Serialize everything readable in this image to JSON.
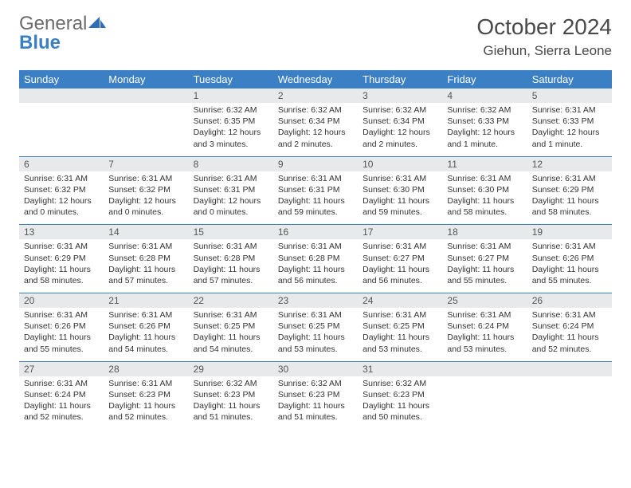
{
  "logo": {
    "general": "General",
    "blue": "Blue"
  },
  "title": "October 2024",
  "location": "Giehun, Sierra Leone",
  "colors": {
    "header_bg": "#3b7fc4",
    "header_text": "#ffffff",
    "daynum_bg": "#e8e9ea",
    "text": "#333333",
    "logo_gray": "#6b6b6b",
    "logo_blue": "#3b7fc4"
  },
  "dow": [
    "Sunday",
    "Monday",
    "Tuesday",
    "Wednesday",
    "Thursday",
    "Friday",
    "Saturday"
  ],
  "weeks": [
    [
      null,
      null,
      {
        "n": "1",
        "sr": "Sunrise: 6:32 AM",
        "ss": "Sunset: 6:35 PM",
        "dl": "Daylight: 12 hours and 3 minutes."
      },
      {
        "n": "2",
        "sr": "Sunrise: 6:32 AM",
        "ss": "Sunset: 6:34 PM",
        "dl": "Daylight: 12 hours and 2 minutes."
      },
      {
        "n": "3",
        "sr": "Sunrise: 6:32 AM",
        "ss": "Sunset: 6:34 PM",
        "dl": "Daylight: 12 hours and 2 minutes."
      },
      {
        "n": "4",
        "sr": "Sunrise: 6:32 AM",
        "ss": "Sunset: 6:33 PM",
        "dl": "Daylight: 12 hours and 1 minute."
      },
      {
        "n": "5",
        "sr": "Sunrise: 6:31 AM",
        "ss": "Sunset: 6:33 PM",
        "dl": "Daylight: 12 hours and 1 minute."
      }
    ],
    [
      {
        "n": "6",
        "sr": "Sunrise: 6:31 AM",
        "ss": "Sunset: 6:32 PM",
        "dl": "Daylight: 12 hours and 0 minutes."
      },
      {
        "n": "7",
        "sr": "Sunrise: 6:31 AM",
        "ss": "Sunset: 6:32 PM",
        "dl": "Daylight: 12 hours and 0 minutes."
      },
      {
        "n": "8",
        "sr": "Sunrise: 6:31 AM",
        "ss": "Sunset: 6:31 PM",
        "dl": "Daylight: 12 hours and 0 minutes."
      },
      {
        "n": "9",
        "sr": "Sunrise: 6:31 AM",
        "ss": "Sunset: 6:31 PM",
        "dl": "Daylight: 11 hours and 59 minutes."
      },
      {
        "n": "10",
        "sr": "Sunrise: 6:31 AM",
        "ss": "Sunset: 6:30 PM",
        "dl": "Daylight: 11 hours and 59 minutes."
      },
      {
        "n": "11",
        "sr": "Sunrise: 6:31 AM",
        "ss": "Sunset: 6:30 PM",
        "dl": "Daylight: 11 hours and 58 minutes."
      },
      {
        "n": "12",
        "sr": "Sunrise: 6:31 AM",
        "ss": "Sunset: 6:29 PM",
        "dl": "Daylight: 11 hours and 58 minutes."
      }
    ],
    [
      {
        "n": "13",
        "sr": "Sunrise: 6:31 AM",
        "ss": "Sunset: 6:29 PM",
        "dl": "Daylight: 11 hours and 58 minutes."
      },
      {
        "n": "14",
        "sr": "Sunrise: 6:31 AM",
        "ss": "Sunset: 6:28 PM",
        "dl": "Daylight: 11 hours and 57 minutes."
      },
      {
        "n": "15",
        "sr": "Sunrise: 6:31 AM",
        "ss": "Sunset: 6:28 PM",
        "dl": "Daylight: 11 hours and 57 minutes."
      },
      {
        "n": "16",
        "sr": "Sunrise: 6:31 AM",
        "ss": "Sunset: 6:28 PM",
        "dl": "Daylight: 11 hours and 56 minutes."
      },
      {
        "n": "17",
        "sr": "Sunrise: 6:31 AM",
        "ss": "Sunset: 6:27 PM",
        "dl": "Daylight: 11 hours and 56 minutes."
      },
      {
        "n": "18",
        "sr": "Sunrise: 6:31 AM",
        "ss": "Sunset: 6:27 PM",
        "dl": "Daylight: 11 hours and 55 minutes."
      },
      {
        "n": "19",
        "sr": "Sunrise: 6:31 AM",
        "ss": "Sunset: 6:26 PM",
        "dl": "Daylight: 11 hours and 55 minutes."
      }
    ],
    [
      {
        "n": "20",
        "sr": "Sunrise: 6:31 AM",
        "ss": "Sunset: 6:26 PM",
        "dl": "Daylight: 11 hours and 55 minutes."
      },
      {
        "n": "21",
        "sr": "Sunrise: 6:31 AM",
        "ss": "Sunset: 6:26 PM",
        "dl": "Daylight: 11 hours and 54 minutes."
      },
      {
        "n": "22",
        "sr": "Sunrise: 6:31 AM",
        "ss": "Sunset: 6:25 PM",
        "dl": "Daylight: 11 hours and 54 minutes."
      },
      {
        "n": "23",
        "sr": "Sunrise: 6:31 AM",
        "ss": "Sunset: 6:25 PM",
        "dl": "Daylight: 11 hours and 53 minutes."
      },
      {
        "n": "24",
        "sr": "Sunrise: 6:31 AM",
        "ss": "Sunset: 6:25 PM",
        "dl": "Daylight: 11 hours and 53 minutes."
      },
      {
        "n": "25",
        "sr": "Sunrise: 6:31 AM",
        "ss": "Sunset: 6:24 PM",
        "dl": "Daylight: 11 hours and 53 minutes."
      },
      {
        "n": "26",
        "sr": "Sunrise: 6:31 AM",
        "ss": "Sunset: 6:24 PM",
        "dl": "Daylight: 11 hours and 52 minutes."
      }
    ],
    [
      {
        "n": "27",
        "sr": "Sunrise: 6:31 AM",
        "ss": "Sunset: 6:24 PM",
        "dl": "Daylight: 11 hours and 52 minutes."
      },
      {
        "n": "28",
        "sr": "Sunrise: 6:31 AM",
        "ss": "Sunset: 6:23 PM",
        "dl": "Daylight: 11 hours and 52 minutes."
      },
      {
        "n": "29",
        "sr": "Sunrise: 6:32 AM",
        "ss": "Sunset: 6:23 PM",
        "dl": "Daylight: 11 hours and 51 minutes."
      },
      {
        "n": "30",
        "sr": "Sunrise: 6:32 AM",
        "ss": "Sunset: 6:23 PM",
        "dl": "Daylight: 11 hours and 51 minutes."
      },
      {
        "n": "31",
        "sr": "Sunrise: 6:32 AM",
        "ss": "Sunset: 6:23 PM",
        "dl": "Daylight: 11 hours and 50 minutes."
      },
      null,
      null
    ]
  ]
}
